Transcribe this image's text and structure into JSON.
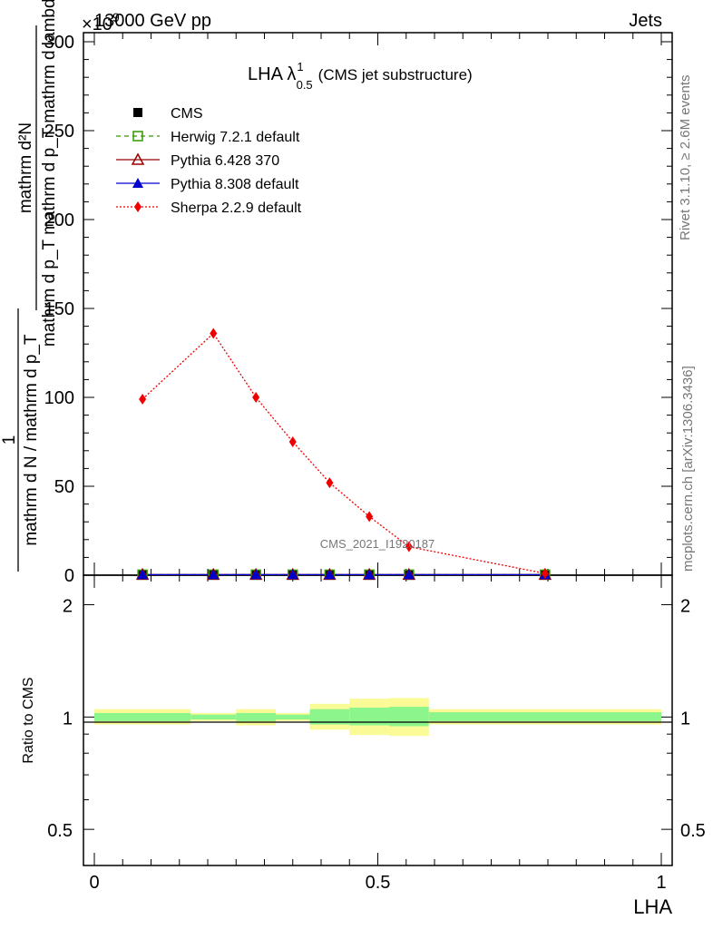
{
  "header": {
    "energy": "13000 GeV pp",
    "process": "Jets"
  },
  "side_labels": {
    "rivet": "Rivet 3.1.10, ≥ 2.6M events",
    "mcplots": "mcplots.cern.ch [arXiv:1306.3436]"
  },
  "watermark": "CMS_2021_I1920187",
  "colors": {
    "cms": "#000000",
    "herwig": "#339900",
    "pythia6": "#990000",
    "pythia8": "#0000cc",
    "sherpa": "#ee0000",
    "band_inner": "#8cf58c",
    "band_outer": "#fafa96"
  },
  "chart_data": [
    {
      "type": "line",
      "title": "LHA λ",
      "title_sup": "1",
      "title_sub": "0.5",
      "title_note": "(CMS jet substructure)",
      "exponent_label": "×10",
      "exponent_sup": "9",
      "ylabel_numerator": "mathrm d²N",
      "ylabel_denominator": "mathrm d p_T mathrm d p_T mathrm d lambda",
      "ylabel_prefix_num": "1",
      "ylabel_prefix_den": "mathrm d N / mathrm d p_T",
      "ylim": [
        0,
        300
      ],
      "xlim": [
        0,
        1
      ],
      "y_ticks": [
        0,
        50,
        100,
        150,
        200,
        250,
        300
      ],
      "x": [
        0.085,
        0.21,
        0.285,
        0.35,
        0.415,
        0.485,
        0.555,
        0.795
      ],
      "series": [
        {
          "name": "CMS",
          "key": "cms",
          "marker": "square",
          "values": [
            0.3,
            0.3,
            0.3,
            0.3,
            0.3,
            0.3,
            0.3,
            0.3
          ]
        },
        {
          "name": "Herwig 7.2.1 default",
          "key": "herwig",
          "marker": "open-square",
          "dash": "dashed",
          "values": [
            0.3,
            0.3,
            0.3,
            0.3,
            0.3,
            0.3,
            0.3,
            0.3
          ]
        },
        {
          "name": "Pythia 6.428 370",
          "key": "pythia6",
          "marker": "open-triangle",
          "dash": "solid",
          "values": [
            0.3,
            0.3,
            0.3,
            0.3,
            0.3,
            0.3,
            0.3,
            0.3
          ]
        },
        {
          "name": "Pythia 8.308 default",
          "key": "pythia8",
          "marker": "triangle",
          "dash": "solid",
          "values": [
            0.3,
            0.3,
            0.3,
            0.3,
            0.3,
            0.3,
            0.3,
            0.3
          ]
        },
        {
          "name": "Sherpa 2.2.9 default",
          "key": "sherpa",
          "marker": "diamond",
          "dash": "dotted",
          "values": [
            99,
            136,
            100,
            75,
            52,
            33,
            16,
            1
          ]
        }
      ]
    },
    {
      "type": "line",
      "xlabel": "LHA",
      "ylabel": "Ratio to CMS",
      "ylim": [
        0.4,
        2.4
      ],
      "y_scale": "log",
      "y_ticks": [
        0.5,
        1,
        2
      ],
      "x_ticks": [
        0,
        0.5,
        1
      ],
      "xlim": [
        0,
        1
      ],
      "bins": [
        0,
        0.17,
        0.25,
        0.32,
        0.38,
        0.45,
        0.52,
        0.59,
        1.0
      ],
      "band_inner": [
        [
          0.975,
          1.025
        ],
        [
          0.985,
          1.015
        ],
        [
          0.975,
          1.025
        ],
        [
          0.985,
          1.015
        ],
        [
          0.955,
          1.05
        ],
        [
          0.95,
          1.06
        ],
        [
          0.945,
          1.065
        ],
        [
          0.975,
          1.03
        ]
      ],
      "band_outer": [
        [
          0.955,
          1.05
        ],
        [
          0.975,
          1.025
        ],
        [
          0.95,
          1.05
        ],
        [
          0.975,
          1.025
        ],
        [
          0.925,
          1.085
        ],
        [
          0.895,
          1.12
        ],
        [
          0.89,
          1.125
        ],
        [
          0.955,
          1.05
        ]
      ],
      "reference": 1
    }
  ]
}
